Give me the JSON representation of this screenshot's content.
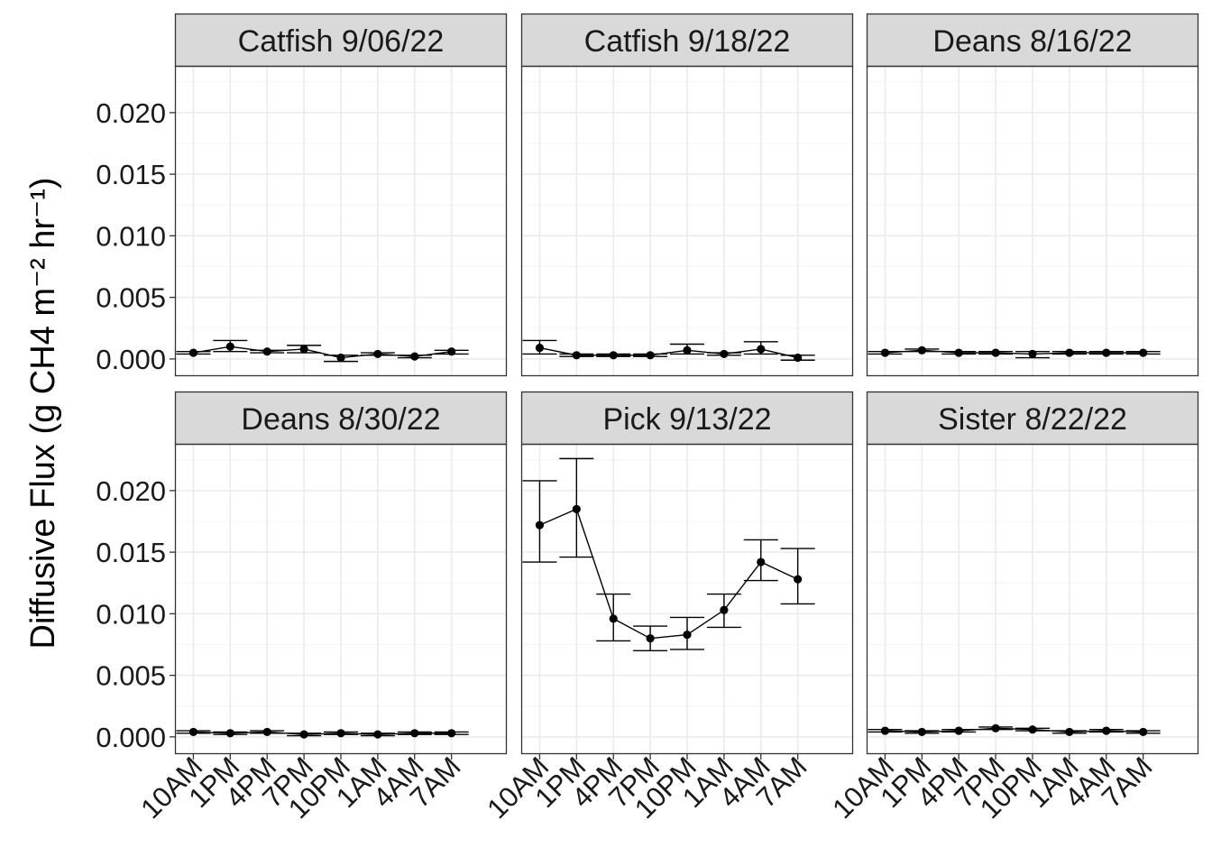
{
  "chart_data": {
    "type": "line",
    "x_categories": [
      "10AM",
      "1PM",
      "4PM",
      "7PM",
      "10PM",
      "1AM",
      "4AM",
      "7AM"
    ],
    "ylabel": "Diffusive Flux (g CH4 m⁻² hr⁻¹)",
    "ylim": [
      -0.0014,
      0.0238
    ],
    "y_ticks": [
      0.0,
      0.005,
      0.01,
      0.015,
      0.02
    ],
    "y_tick_labels": [
      "0.000",
      "0.005",
      "0.010",
      "0.015",
      "0.020"
    ],
    "grid": true,
    "error_bars": true,
    "facet_grid": {
      "rows": 2,
      "cols": 3
    },
    "panels": [
      {
        "title": "Catfish 9/06/22",
        "values": [
          0.0005,
          0.001,
          0.0006,
          0.0008,
          0.0001,
          0.0004,
          0.0002,
          0.0006
        ],
        "error_low": [
          0.0004,
          0.0006,
          0.0005,
          0.0005,
          -0.0002,
          0.0003,
          0.0001,
          0.0004
        ],
        "error_high": [
          0.0006,
          0.0015,
          0.0007,
          0.0011,
          0.0003,
          0.0005,
          0.0003,
          0.0007
        ]
      },
      {
        "title": "Catfish 9/18/22",
        "values": [
          0.0009,
          0.0003,
          0.0003,
          0.0003,
          0.0007,
          0.0004,
          0.0008,
          0.0001
        ],
        "error_low": [
          0.0004,
          0.0002,
          0.0002,
          0.0002,
          0.0004,
          0.0003,
          0.0004,
          -0.0001
        ],
        "error_high": [
          0.0015,
          0.0004,
          0.0004,
          0.0004,
          0.0012,
          0.0005,
          0.0014,
          0.0003
        ]
      },
      {
        "title": "Deans 8/16/22",
        "values": [
          0.0005,
          0.0007,
          0.0005,
          0.0005,
          0.0004,
          0.0005,
          0.0005,
          0.0005
        ],
        "error_low": [
          0.0004,
          0.0006,
          0.0004,
          0.0004,
          0.0001,
          0.0004,
          0.0004,
          0.0004
        ],
        "error_high": [
          0.0006,
          0.0008,
          0.0006,
          0.0006,
          0.0006,
          0.0006,
          0.0006,
          0.0006
        ]
      },
      {
        "title": "Deans 8/30/22",
        "values": [
          0.0004,
          0.0003,
          0.0004,
          0.0002,
          0.0003,
          0.0002,
          0.0003,
          0.0003
        ],
        "error_low": [
          0.0003,
          0.0002,
          0.0003,
          0.0001,
          0.0002,
          0.0001,
          0.0002,
          0.0002
        ],
        "error_high": [
          0.0005,
          0.0004,
          0.0005,
          0.0003,
          0.0004,
          0.0003,
          0.0004,
          0.0004
        ]
      },
      {
        "title": "Pick 9/13/22",
        "values": [
          0.0172,
          0.0185,
          0.0096,
          0.008,
          0.0083,
          0.0103,
          0.0142,
          0.0128
        ],
        "error_low": [
          0.0142,
          0.0146,
          0.0078,
          0.007,
          0.0071,
          0.0089,
          0.0127,
          0.0108
        ],
        "error_high": [
          0.0208,
          0.0226,
          0.0116,
          0.009,
          0.0097,
          0.0116,
          0.016,
          0.0153
        ]
      },
      {
        "title": "Sister 8/22/22",
        "values": [
          0.0005,
          0.0004,
          0.0005,
          0.0007,
          0.0006,
          0.0004,
          0.0005,
          0.0004
        ],
        "error_low": [
          0.0004,
          0.0003,
          0.0004,
          0.0006,
          0.0005,
          0.0003,
          0.0004,
          0.0003
        ],
        "error_high": [
          0.0006,
          0.0005,
          0.0006,
          0.0008,
          0.0007,
          0.0005,
          0.0006,
          0.0005
        ]
      }
    ]
  },
  "colors": {
    "strip_background": "#d9d9d9",
    "panel_border": "#333333",
    "grid_major": "#ebebeb",
    "grid_minor": "#f4f4f4",
    "series": "#000000"
  }
}
